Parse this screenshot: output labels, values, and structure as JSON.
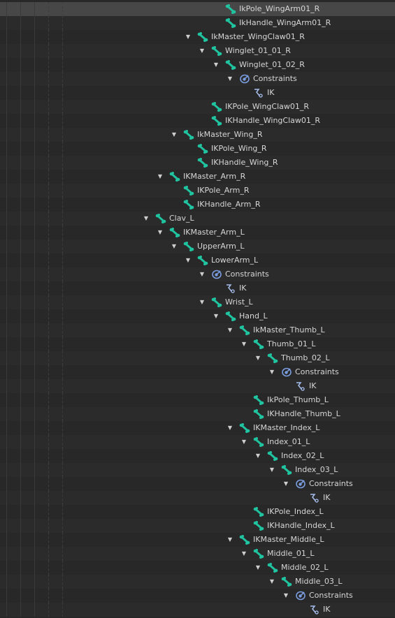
{
  "colors": {
    "bone": "#20c4a0",
    "constraint": "#7a9de0",
    "ik": "#a8c0f0"
  },
  "rows": [
    {
      "label": "IkPole_WingArm01_R",
      "type": "bone",
      "depth": 5,
      "expanded": null
    },
    {
      "label": "IkHandle_WingArm01_R",
      "type": "bone",
      "depth": 5,
      "expanded": null
    },
    {
      "label": "IkMaster_WingClaw01_R",
      "type": "bone",
      "depth": 3,
      "expanded": true
    },
    {
      "label": "Winglet_01_01_R",
      "type": "bone",
      "depth": 4,
      "expanded": true
    },
    {
      "label": "Winglet_01_02_R",
      "type": "bone",
      "depth": 5,
      "expanded": true
    },
    {
      "label": "Constraints",
      "type": "constraints",
      "depth": 6,
      "expanded": true
    },
    {
      "label": "IK",
      "type": "ik",
      "depth": 7,
      "expanded": null
    },
    {
      "label": "IKPole_WingClaw01_R",
      "type": "bone",
      "depth": 4,
      "expanded": null
    },
    {
      "label": "IKHandle_WingClaw01_R",
      "type": "bone",
      "depth": 4,
      "expanded": null
    },
    {
      "label": "IkMaster_Wing_R",
      "type": "bone",
      "depth": 2,
      "expanded": true
    },
    {
      "label": "IKPole_Wing_R",
      "type": "bone",
      "depth": 3,
      "expanded": null
    },
    {
      "label": "IKHandle_Wing_R",
      "type": "bone",
      "depth": 3,
      "expanded": null
    },
    {
      "label": "IKMaster_Arm_R",
      "type": "bone",
      "depth": 1,
      "expanded": true
    },
    {
      "label": "IKPole_Arm_R",
      "type": "bone",
      "depth": 2,
      "expanded": null
    },
    {
      "label": "IKHandle_Arm_R",
      "type": "bone",
      "depth": 2,
      "expanded": null
    },
    {
      "label": "Clav_L",
      "type": "bone",
      "depth": 0,
      "expanded": true
    },
    {
      "label": "IKMaster_Arm_L",
      "type": "bone",
      "depth": 1,
      "expanded": true
    },
    {
      "label": "UpperArm_L",
      "type": "bone",
      "depth": 2,
      "expanded": true
    },
    {
      "label": "LowerArm_L",
      "type": "bone",
      "depth": 3,
      "expanded": true
    },
    {
      "label": "Constraints",
      "type": "constraints",
      "depth": 4,
      "expanded": true
    },
    {
      "label": "IK",
      "type": "ik",
      "depth": 5,
      "expanded": null
    },
    {
      "label": "Wrist_L",
      "type": "bone",
      "depth": 4,
      "expanded": true
    },
    {
      "label": "Hand_L",
      "type": "bone",
      "depth": 5,
      "expanded": true
    },
    {
      "label": "IkMaster_Thumb_L",
      "type": "bone",
      "depth": 6,
      "expanded": true
    },
    {
      "label": "Thumb_01_L",
      "type": "bone",
      "depth": 7,
      "expanded": true
    },
    {
      "label": "Thumb_02_L",
      "type": "bone",
      "depth": 8,
      "expanded": true
    },
    {
      "label": "Constraints",
      "type": "constraints",
      "depth": 9,
      "expanded": true
    },
    {
      "label": "IK",
      "type": "ik",
      "depth": 10,
      "expanded": null
    },
    {
      "label": "IkPole_Thumb_L",
      "type": "bone",
      "depth": 7,
      "expanded": null
    },
    {
      "label": "IKHandle_Thumb_L",
      "type": "bone",
      "depth": 7,
      "expanded": null
    },
    {
      "label": "IKMaster_Index_L",
      "type": "bone",
      "depth": 6,
      "expanded": true
    },
    {
      "label": "Index_01_L",
      "type": "bone",
      "depth": 7,
      "expanded": true
    },
    {
      "label": "Index_02_L",
      "type": "bone",
      "depth": 8,
      "expanded": true
    },
    {
      "label": "Index_03_L",
      "type": "bone",
      "depth": 9,
      "expanded": true
    },
    {
      "label": "Constraints",
      "type": "constraints",
      "depth": 10,
      "expanded": true
    },
    {
      "label": "IK",
      "type": "ik",
      "depth": 11,
      "expanded": null
    },
    {
      "label": "IKPole_Index_L",
      "type": "bone",
      "depth": 7,
      "expanded": null
    },
    {
      "label": "IKHandle_Index_L",
      "type": "bone",
      "depth": 7,
      "expanded": null
    },
    {
      "label": "IKMaster_Middle_L",
      "type": "bone",
      "depth": 6,
      "expanded": true
    },
    {
      "label": "Middle_01_L",
      "type": "bone",
      "depth": 7,
      "expanded": true
    },
    {
      "label": "Middle_02_L",
      "type": "bone",
      "depth": 8,
      "expanded": true
    },
    {
      "label": "Middle_03_L",
      "type": "bone",
      "depth": 9,
      "expanded": true
    },
    {
      "label": "Constraints",
      "type": "constraints",
      "depth": 10,
      "expanded": true
    },
    {
      "label": "IK",
      "type": "ik",
      "depth": 11,
      "expanded": null
    }
  ]
}
